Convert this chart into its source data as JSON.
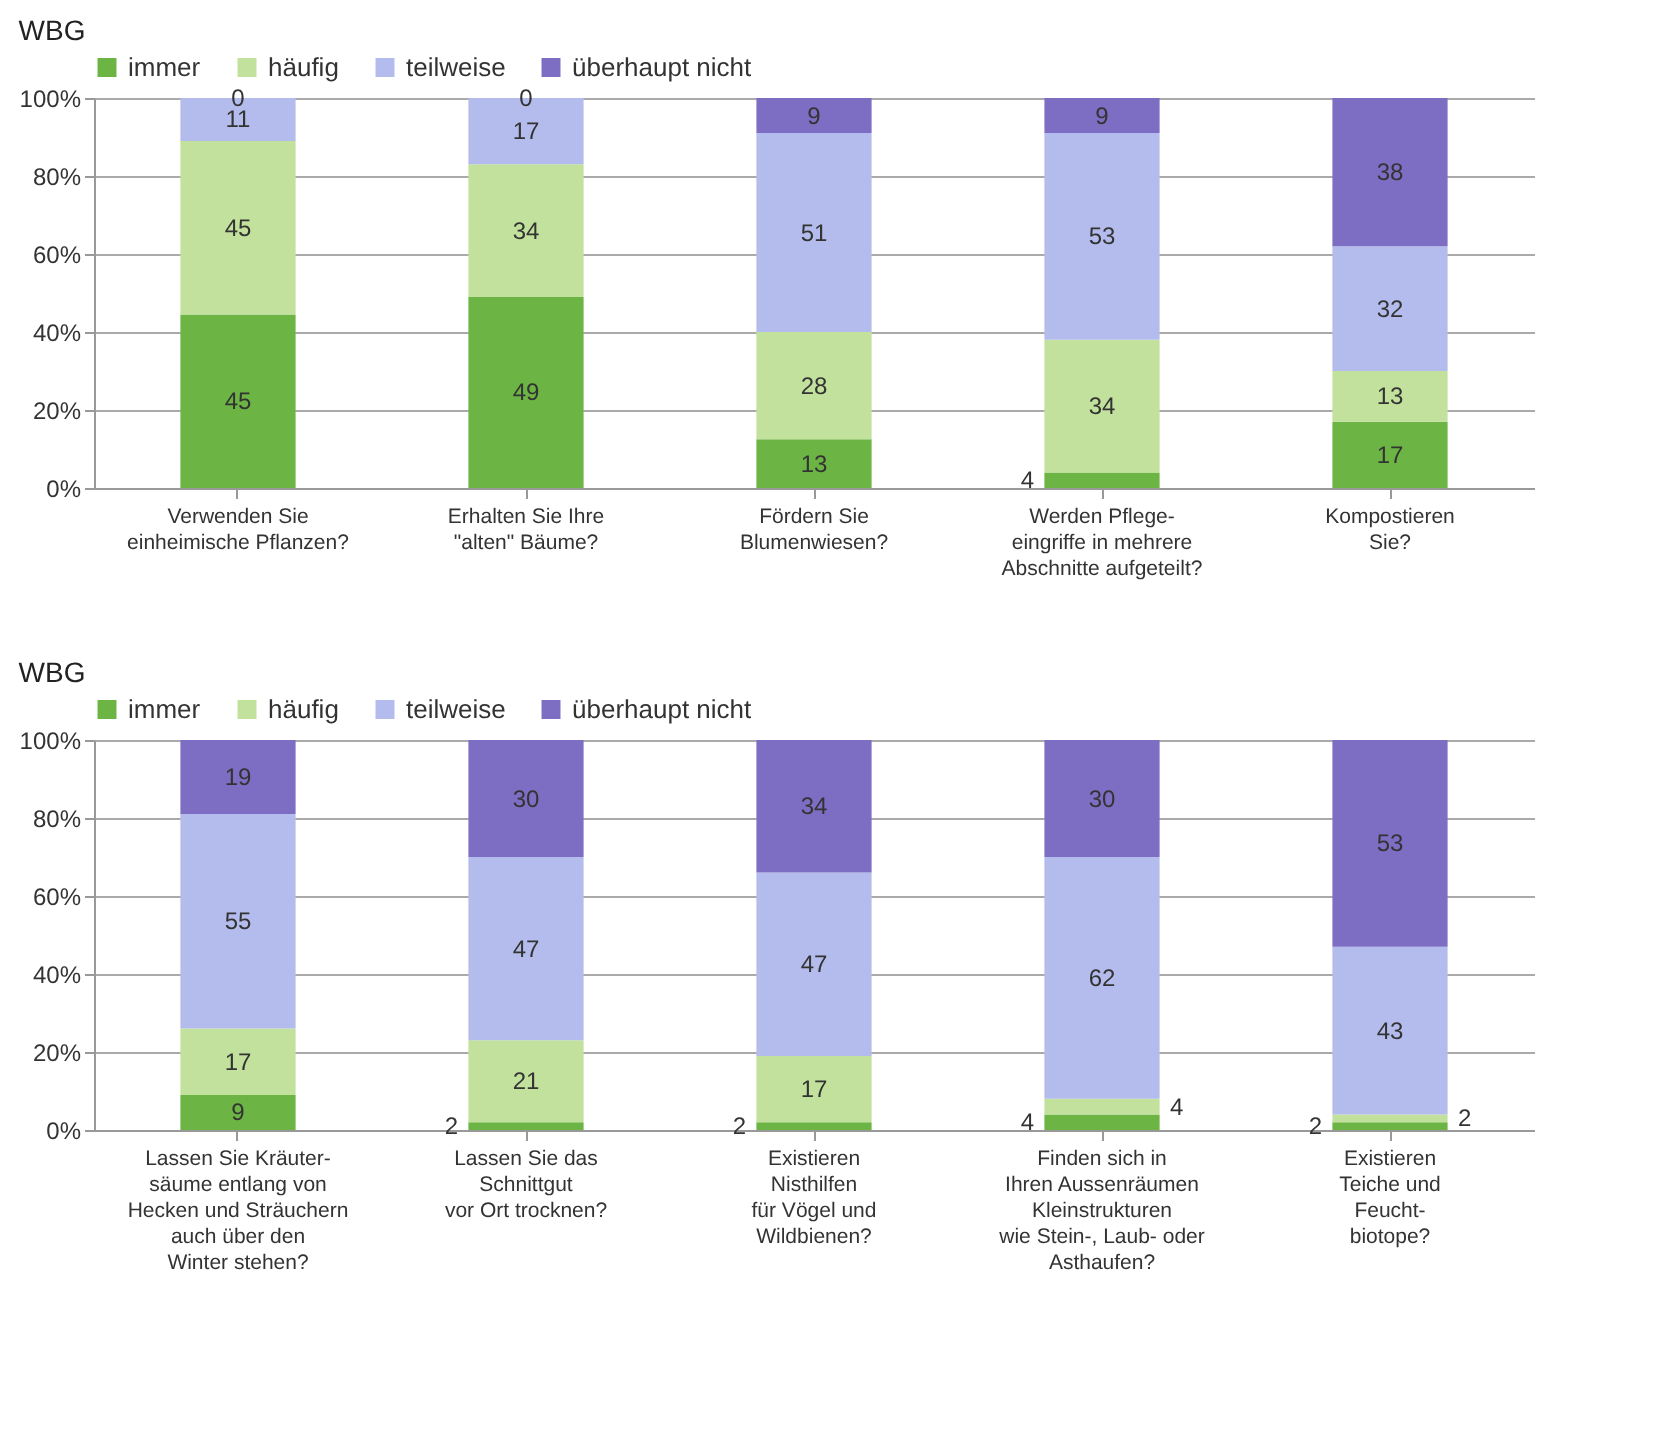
{
  "chart_data": [
    {
      "type": "bar",
      "stacked": true,
      "title": "WBG",
      "legend": "top",
      "grid": "y",
      "categories": [
        "Verwenden  Sie\neinheimische Pflanzen?",
        "Erhalten Sie Ihre\n\"alten\" Bäume?",
        "Fördern Sie\nBlumenwiesen?",
        "Werden Pflege-\neingriffe in mehrere\nAbschnitte aufgeteilt?",
        "Kompostieren\nSie?"
      ],
      "ylim": [
        0,
        100
      ],
      "yticks": [
        {
          "value": 0,
          "label": "0%"
        },
        {
          "value": 20,
          "label": "20%"
        },
        {
          "value": 40,
          "label": "40%"
        },
        {
          "value": 60,
          "label": "60%"
        },
        {
          "value": 80,
          "label": "80%"
        },
        {
          "value": 100,
          "label": "100%"
        }
      ],
      "series": [
        {
          "name": "immer",
          "color": "#6cb545",
          "values": [
            44.5,
            49,
            12.5,
            4,
            17
          ],
          "value_labels": [
            "45",
            "49",
            "13",
            "4",
            "17"
          ]
        },
        {
          "name": "häufig",
          "color": "#c2e19c",
          "values": [
            44.5,
            34,
            27.5,
            34,
            13
          ],
          "value_labels": [
            "45",
            "34",
            "28",
            "34",
            "13"
          ]
        },
        {
          "name": "teilweise",
          "color": "#b3bcec",
          "values": [
            11,
            17,
            51,
            53,
            32
          ],
          "value_labels": [
            "11",
            "17",
            "51",
            "53",
            "32"
          ]
        },
        {
          "name": "überhaupt nicht",
          "color": "#7d6ec4",
          "values": [
            0,
            0,
            9,
            9,
            38
          ],
          "value_labels": [
            "0",
            "0",
            "9",
            "9",
            "38"
          ]
        }
      ]
    },
    {
      "type": "bar",
      "stacked": true,
      "title": "WBG",
      "legend": "top",
      "grid": "y",
      "categories": [
        "Lassen Sie Kräuter-\nsäume entlang von\nHecken und Sträuchern\nauch über den\nWinter stehen?",
        "Lassen Sie  das\nSchnittgut\nvor Ort trocknen?",
        "Existieren\nNisthilfen\nfür Vögel und\nWildbienen?",
        "Finden sich in\nIhren Aussenräumen\nKleinstrukturen\nwie Stein-, Laub- oder\nAsthaufen?",
        "Existieren\nTeiche und\nFeucht-\nbiotope?"
      ],
      "ylim": [
        0,
        100
      ],
      "yticks": [
        {
          "value": 0,
          "label": "0%"
        },
        {
          "value": 20,
          "label": "20%"
        },
        {
          "value": 40,
          "label": "40%"
        },
        {
          "value": 60,
          "label": "60%"
        },
        {
          "value": 80,
          "label": "80%"
        },
        {
          "value": 100,
          "label": "100%"
        }
      ],
      "series": [
        {
          "name": "immer",
          "color": "#6cb545",
          "values": [
            9,
            2,
            2,
            4,
            2
          ],
          "value_labels": [
            "9",
            "2",
            "2",
            "4",
            "2"
          ]
        },
        {
          "name": "häufig",
          "color": "#c2e19c",
          "values": [
            17,
            21,
            17,
            4,
            2
          ],
          "value_labels": [
            "17",
            "21",
            "17",
            "4",
            "2"
          ]
        },
        {
          "name": "teilweise",
          "color": "#b3bcec",
          "values": [
            55,
            47,
            47,
            62,
            43
          ],
          "value_labels": [
            "55",
            "47",
            "47",
            "62",
            "43"
          ]
        },
        {
          "name": "überhaupt nicht",
          "color": "#7d6ec4",
          "values": [
            19,
            30,
            34,
            30,
            53
          ],
          "value_labels": [
            "19",
            "30",
            "34",
            "30",
            "53"
          ]
        }
      ]
    }
  ]
}
